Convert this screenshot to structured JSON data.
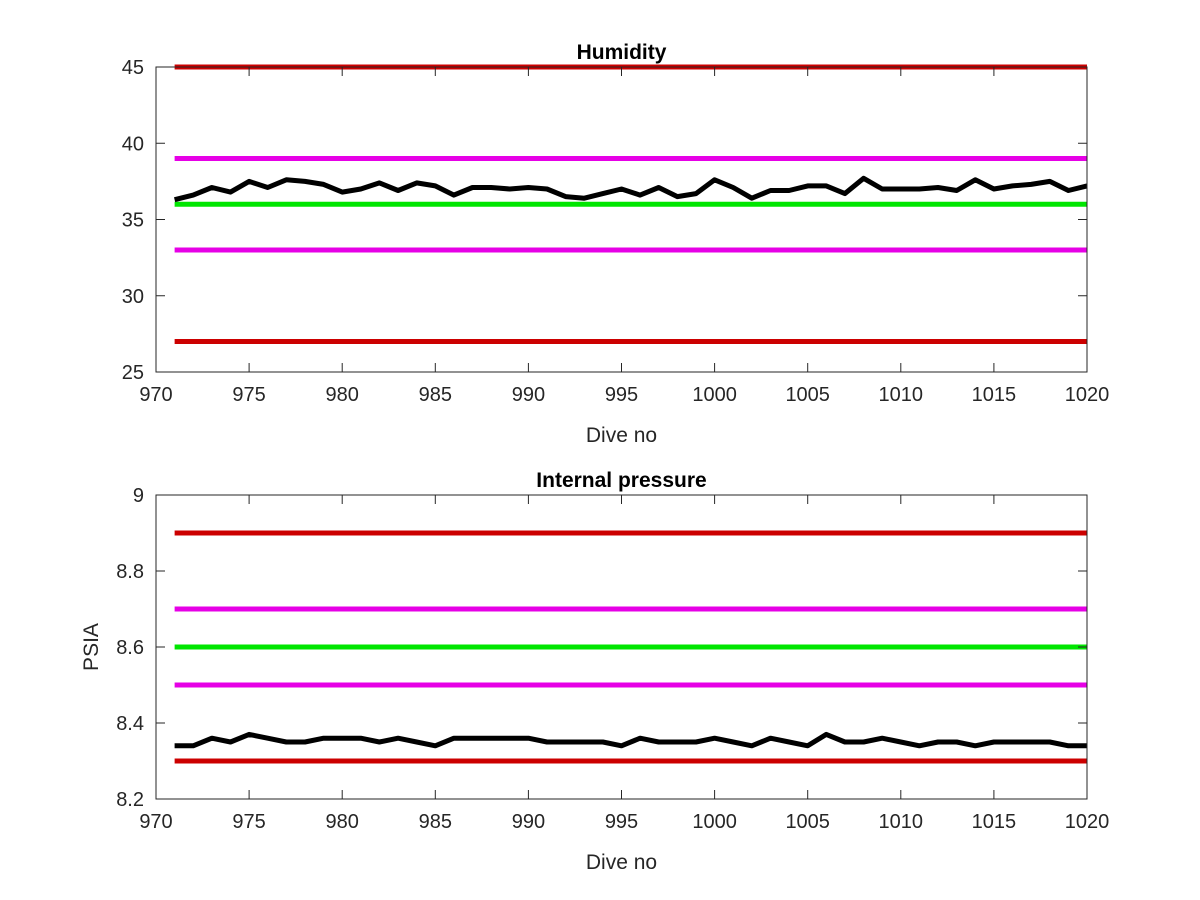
{
  "chart_data": [
    {
      "type": "line",
      "title": "Humidity",
      "xlabel": "Dive no",
      "ylabel": "",
      "xlim": [
        970,
        1020
      ],
      "ylim": [
        25,
        45
      ],
      "xticks": [
        970,
        975,
        980,
        985,
        990,
        995,
        1000,
        1005,
        1010,
        1015,
        1020
      ],
      "yticks": [
        25,
        30,
        35,
        40,
        45
      ],
      "grid": false,
      "reference_lines": [
        {
          "y": 45,
          "color": "#cc0000"
        },
        {
          "y": 39,
          "color": "#e600e6"
        },
        {
          "y": 36,
          "color": "#00e600"
        },
        {
          "y": 33,
          "color": "#e600e6"
        },
        {
          "y": 27,
          "color": "#cc0000"
        }
      ],
      "series": [
        {
          "color": "#000000",
          "x": [
            971,
            972,
            973,
            974,
            975,
            976,
            977,
            978,
            979,
            980,
            981,
            982,
            983,
            984,
            985,
            986,
            987,
            988,
            989,
            990,
            991,
            992,
            993,
            994,
            995,
            996,
            997,
            998,
            999,
            1000,
            1001,
            1002,
            1003,
            1004,
            1005,
            1006,
            1007,
            1008,
            1009,
            1010,
            1011,
            1012,
            1013,
            1014,
            1015,
            1016,
            1017,
            1018,
            1019,
            1020
          ],
          "values": [
            36.3,
            36.6,
            37.1,
            36.8,
            37.5,
            37.1,
            37.6,
            37.5,
            37.3,
            36.8,
            37.0,
            37.4,
            36.9,
            37.4,
            37.2,
            36.6,
            37.1,
            37.1,
            37.0,
            37.1,
            37.0,
            36.5,
            36.4,
            36.7,
            37.0,
            36.6,
            37.1,
            36.5,
            36.7,
            37.6,
            37.1,
            36.4,
            36.9,
            36.9,
            37.2,
            37.2,
            36.7,
            37.7,
            37.0,
            37.0,
            37.0,
            37.1,
            36.9,
            37.6,
            37.0,
            37.2,
            37.3,
            37.5,
            36.9,
            37.2
          ]
        }
      ]
    },
    {
      "type": "line",
      "title": "Internal pressure",
      "xlabel": "Dive no",
      "ylabel": "PSIA",
      "xlim": [
        970,
        1020
      ],
      "ylim": [
        8.2,
        9
      ],
      "xticks": [
        970,
        975,
        980,
        985,
        990,
        995,
        1000,
        1005,
        1010,
        1015,
        1020
      ],
      "yticks": [
        8.2,
        8.4,
        8.6,
        8.8,
        9
      ],
      "grid": false,
      "reference_lines": [
        {
          "y": 8.9,
          "color": "#cc0000"
        },
        {
          "y": 8.7,
          "color": "#e600e6"
        },
        {
          "y": 8.6,
          "color": "#00e600"
        },
        {
          "y": 8.5,
          "color": "#e600e6"
        },
        {
          "y": 8.3,
          "color": "#cc0000"
        }
      ],
      "series": [
        {
          "color": "#000000",
          "x": [
            971,
            972,
            973,
            974,
            975,
            976,
            977,
            978,
            979,
            980,
            981,
            982,
            983,
            984,
            985,
            986,
            987,
            988,
            989,
            990,
            991,
            992,
            993,
            994,
            995,
            996,
            997,
            998,
            999,
            1000,
            1001,
            1002,
            1003,
            1004,
            1005,
            1006,
            1007,
            1008,
            1009,
            1010,
            1011,
            1012,
            1013,
            1014,
            1015,
            1016,
            1017,
            1018,
            1019,
            1020
          ],
          "values": [
            8.34,
            8.34,
            8.36,
            8.35,
            8.37,
            8.36,
            8.35,
            8.35,
            8.36,
            8.36,
            8.36,
            8.35,
            8.36,
            8.35,
            8.34,
            8.36,
            8.36,
            8.36,
            8.36,
            8.36,
            8.35,
            8.35,
            8.35,
            8.35,
            8.34,
            8.36,
            8.35,
            8.35,
            8.35,
            8.36,
            8.35,
            8.34,
            8.36,
            8.35,
            8.34,
            8.37,
            8.35,
            8.35,
            8.36,
            8.35,
            8.34,
            8.35,
            8.35,
            8.34,
            8.35,
            8.35,
            8.35,
            8.35,
            8.34,
            8.34
          ]
        }
      ]
    }
  ]
}
